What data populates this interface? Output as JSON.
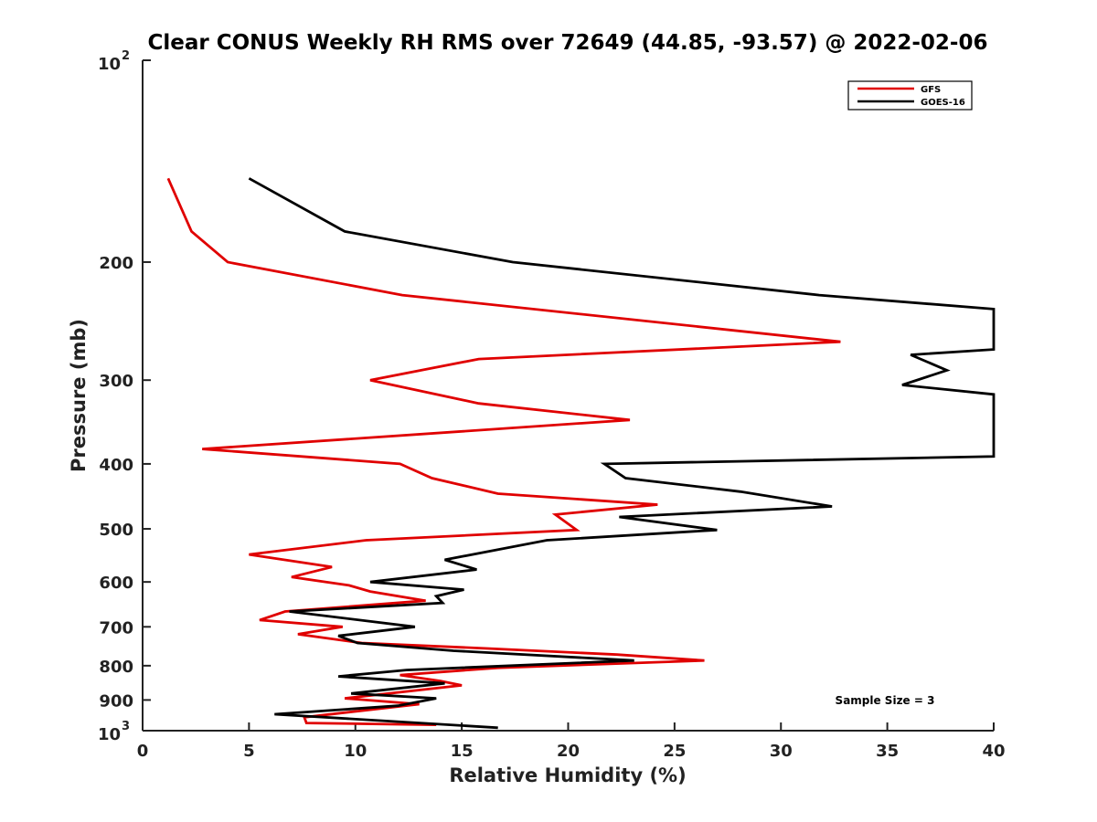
{
  "chart_data": {
    "type": "line",
    "title": "Clear CONUS Weekly RH RMS over 72649 (44.85, -93.57) @ 2022-02-06",
    "xlabel": "Relative Humidity (%)",
    "ylabel": "Pressure (mb)",
    "xlim": [
      0,
      40
    ],
    "ylim": [
      100,
      1000
    ],
    "y_scale": "log",
    "y_reversed": true,
    "x_ticks": [
      "0",
      "5",
      "10",
      "15",
      "20",
      "25",
      "30",
      "35",
      "40"
    ],
    "y_ticks": [
      {
        "value": 100,
        "base": "10",
        "exp": "2"
      },
      {
        "value": 200,
        "label": "200"
      },
      {
        "value": 300,
        "label": "300"
      },
      {
        "value": 400,
        "label": "400"
      },
      {
        "value": 500,
        "label": "500"
      },
      {
        "value": 600,
        "label": "600"
      },
      {
        "value": 700,
        "label": "700"
      },
      {
        "value": 800,
        "label": "800"
      },
      {
        "value": 900,
        "label": "900"
      },
      {
        "value": 1000,
        "base": "10",
        "exp": "3"
      }
    ],
    "legend_position": "top-right",
    "annotation": "Sample Size = 3",
    "series": [
      {
        "name": "GFS",
        "color": "#e00000",
        "points": [
          [
            1.2,
            150
          ],
          [
            2.3,
            180
          ],
          [
            4.0,
            200
          ],
          [
            12.2,
            224
          ],
          [
            32.8,
            263
          ],
          [
            15.8,
            279
          ],
          [
            10.7,
            300
          ],
          [
            15.8,
            325
          ],
          [
            22.9,
            344
          ],
          [
            2.8,
            380
          ],
          [
            12.1,
            400
          ],
          [
            13.6,
            420
          ],
          [
            16.7,
            443
          ],
          [
            24.2,
            460
          ],
          [
            19.4,
            476
          ],
          [
            20.4,
            502
          ],
          [
            10.5,
            520
          ],
          [
            5.0,
            546
          ],
          [
            8.9,
            570
          ],
          [
            7.0,
            590
          ],
          [
            9.7,
            607
          ],
          [
            10.7,
            620
          ],
          [
            13.3,
            640
          ],
          [
            6.7,
            664
          ],
          [
            5.5,
            684
          ],
          [
            9.4,
            700
          ],
          [
            7.3,
            718
          ],
          [
            10.3,
            740
          ],
          [
            16.2,
            754
          ],
          [
            22.3,
            770
          ],
          [
            26.4,
            786
          ],
          [
            16.7,
            806
          ],
          [
            12.1,
            826
          ],
          [
            14.0,
            843
          ],
          [
            15.0,
            856
          ],
          [
            9.5,
            895
          ],
          [
            13.0,
            913
          ],
          [
            7.6,
            955
          ],
          [
            7.7,
            974
          ],
          [
            13.8,
            980
          ]
        ]
      },
      {
        "name": "GOES-16",
        "color": "#000000",
        "points": [
          [
            5.0,
            150
          ],
          [
            9.5,
            180
          ],
          [
            17.4,
            200
          ],
          [
            31.8,
            224
          ],
          [
            40.0,
            235
          ],
          [
            40.0,
            270
          ],
          [
            36.1,
            275
          ],
          [
            37.8,
            290
          ],
          [
            35.7,
            305
          ],
          [
            40.0,
            315
          ],
          [
            40.0,
            320
          ],
          [
            40.0,
            390
          ],
          [
            21.7,
            400
          ],
          [
            22.7,
            420
          ],
          [
            28.1,
            440
          ],
          [
            32.4,
            463
          ],
          [
            22.4,
            480
          ],
          [
            27.0,
            502
          ],
          [
            19.0,
            520
          ],
          [
            14.2,
            556
          ],
          [
            15.7,
            575
          ],
          [
            10.7,
            600
          ],
          [
            15.1,
            616
          ],
          [
            13.8,
            630
          ],
          [
            14.1,
            645
          ],
          [
            6.9,
            664
          ],
          [
            12.8,
            700
          ],
          [
            9.2,
            722
          ],
          [
            10.1,
            740
          ],
          [
            14.6,
            760
          ],
          [
            23.1,
            786
          ],
          [
            12.4,
            812
          ],
          [
            9.2,
            830
          ],
          [
            14.2,
            850
          ],
          [
            9.8,
            880
          ],
          [
            13.8,
            895
          ],
          [
            12.0,
            918
          ],
          [
            6.2,
            945
          ],
          [
            16.7,
            990
          ]
        ]
      }
    ]
  }
}
